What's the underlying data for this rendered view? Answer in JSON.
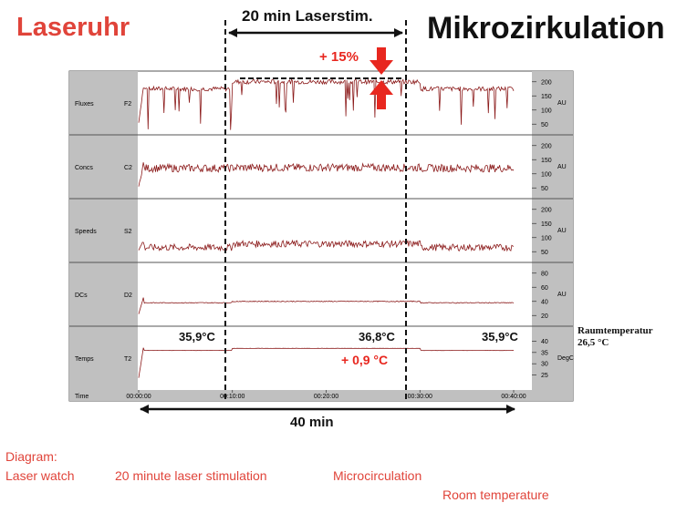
{
  "header": {
    "title_left": "Laseruhr",
    "title_right": "Mikrozirkulation",
    "stim_label": "20 min Laserstim.",
    "increase_label": "+ 15%"
  },
  "bottom": {
    "duration_label": "40 min"
  },
  "temperature": {
    "start": "35,9°C",
    "during": "36,8°C",
    "end": "35,9°C",
    "delta": "+ 0,9 °C",
    "room_label": "Raumtemperatur",
    "room_value": "26,5 °C"
  },
  "footer": {
    "diagram": "Diagram:",
    "laser_watch": "Laser watch",
    "stimulation": "20 minute laser stimulation",
    "microcirculation": "Microcirculation",
    "room_temperature": "Room temperature"
  },
  "colors": {
    "trace": "#8b1a1a",
    "accent": "#e8271f",
    "panel_bg": "#c0c0c0"
  },
  "chart_data": {
    "type": "line",
    "x_unit": "time",
    "x_ticks": [
      "00:00:00",
      "00:10:00",
      "00:20:00",
      "00:30:00",
      "00:40:00"
    ],
    "x_range_min": [
      0,
      40
    ],
    "stim_window_min": [
      10,
      30
    ],
    "time_axis_label": "Time",
    "channels": [
      {
        "name": "Fluxes",
        "id": "F2",
        "unit": "AU",
        "ticks": [
          "200",
          "150",
          "100",
          "50"
        ],
        "tick_values": [
          200,
          150,
          100,
          50
        ],
        "range": [
          25,
          225
        ],
        "baseline": 175,
        "baseline_stim": 200,
        "noise": 8,
        "dips": true
      },
      {
        "name": "Concs",
        "id": "C2",
        "unit": "AU",
        "ticks": [
          "200",
          "150",
          "100",
          "50"
        ],
        "tick_values": [
          200,
          150,
          100,
          50
        ],
        "range": [
          25,
          225
        ],
        "baseline": 120,
        "baseline_stim": 122,
        "noise": 14,
        "dips": false
      },
      {
        "name": "Speeds",
        "id": "S2",
        "unit": "AU",
        "ticks": [
          "200",
          "150",
          "100",
          "50"
        ],
        "tick_values": [
          200,
          150,
          100,
          50
        ],
        "range": [
          25,
          225
        ],
        "baseline": 65,
        "baseline_stim": 78,
        "noise": 12,
        "dips": false
      },
      {
        "name": "DCs",
        "id": "D2",
        "unit": "AU",
        "ticks": [
          "80",
          "60",
          "40",
          "20"
        ],
        "tick_values": [
          80,
          60,
          40,
          20
        ],
        "range": [
          10,
          90
        ],
        "baseline": 38,
        "baseline_stim": 40,
        "noise": 0.6,
        "dips": false
      },
      {
        "name": "Temps",
        "id": "T2",
        "unit": "DegC",
        "ticks": [
          "40",
          "35",
          "30",
          "25"
        ],
        "tick_values": [
          40,
          35,
          30,
          25
        ],
        "range": [
          20,
          45
        ],
        "baseline": 35.9,
        "baseline_stim": 36.8,
        "noise": 0.05,
        "dips": false
      }
    ]
  }
}
